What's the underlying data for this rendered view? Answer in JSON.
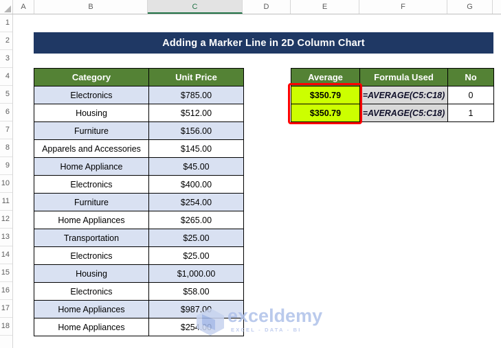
{
  "banner": {
    "title": "Adding a Marker Line in 2D Column Chart"
  },
  "spreadsheet": {
    "column_headers": [
      "A",
      "B",
      "C",
      "D",
      "E",
      "F",
      "G"
    ],
    "selected_column": "C",
    "row_headers": [
      "1",
      "2",
      "3",
      "4",
      "5",
      "6",
      "7",
      "8",
      "9",
      "10",
      "11",
      "12",
      "13",
      "14",
      "15",
      "16",
      "17",
      "18"
    ]
  },
  "data_table": {
    "headers": [
      "Category",
      "Unit Price"
    ],
    "rows": [
      [
        "Electronics",
        "$785.00"
      ],
      [
        "Housing",
        "$512.00"
      ],
      [
        "Furniture",
        "$156.00"
      ],
      [
        "Apparels and Accessories",
        "$145.00"
      ],
      [
        "Home Appliance",
        "$45.00"
      ],
      [
        "Electronics",
        "$400.00"
      ],
      [
        "Furniture",
        "$254.00"
      ],
      [
        "Home Appliances",
        "$265.00"
      ],
      [
        "Transportation",
        "$25.00"
      ],
      [
        "Electronics",
        "$25.00"
      ],
      [
        "Housing",
        "$1,000.00"
      ],
      [
        "Electronics",
        "$58.00"
      ],
      [
        "Home Appliances",
        "$987.00"
      ],
      [
        "Home Appliances",
        "$254.00"
      ]
    ]
  },
  "average_table": {
    "headers": [
      "Average",
      "Formula Used",
      "No"
    ],
    "rows": [
      {
        "average": "$350.79",
        "formula": "=AVERAGE(C5:C18)",
        "no": "0"
      },
      {
        "average": "$350.79",
        "formula": "=AVERAGE(C5:C18)",
        "no": "1"
      }
    ]
  },
  "watermark": {
    "brand": "exceldemy",
    "tagline": "EXCEL - DATA - BI"
  },
  "colors": {
    "banner_bg": "#1F3864",
    "table_header_green": "#548235",
    "alt_row_fill": "#D9E1F2",
    "average_highlight": "#CCFF00",
    "formula_cell_bg": "#D9D9D9",
    "marker_box_red": "#FF0000",
    "selected_column_green": "#217346",
    "watermark_blue": "#AFC1E9"
  }
}
